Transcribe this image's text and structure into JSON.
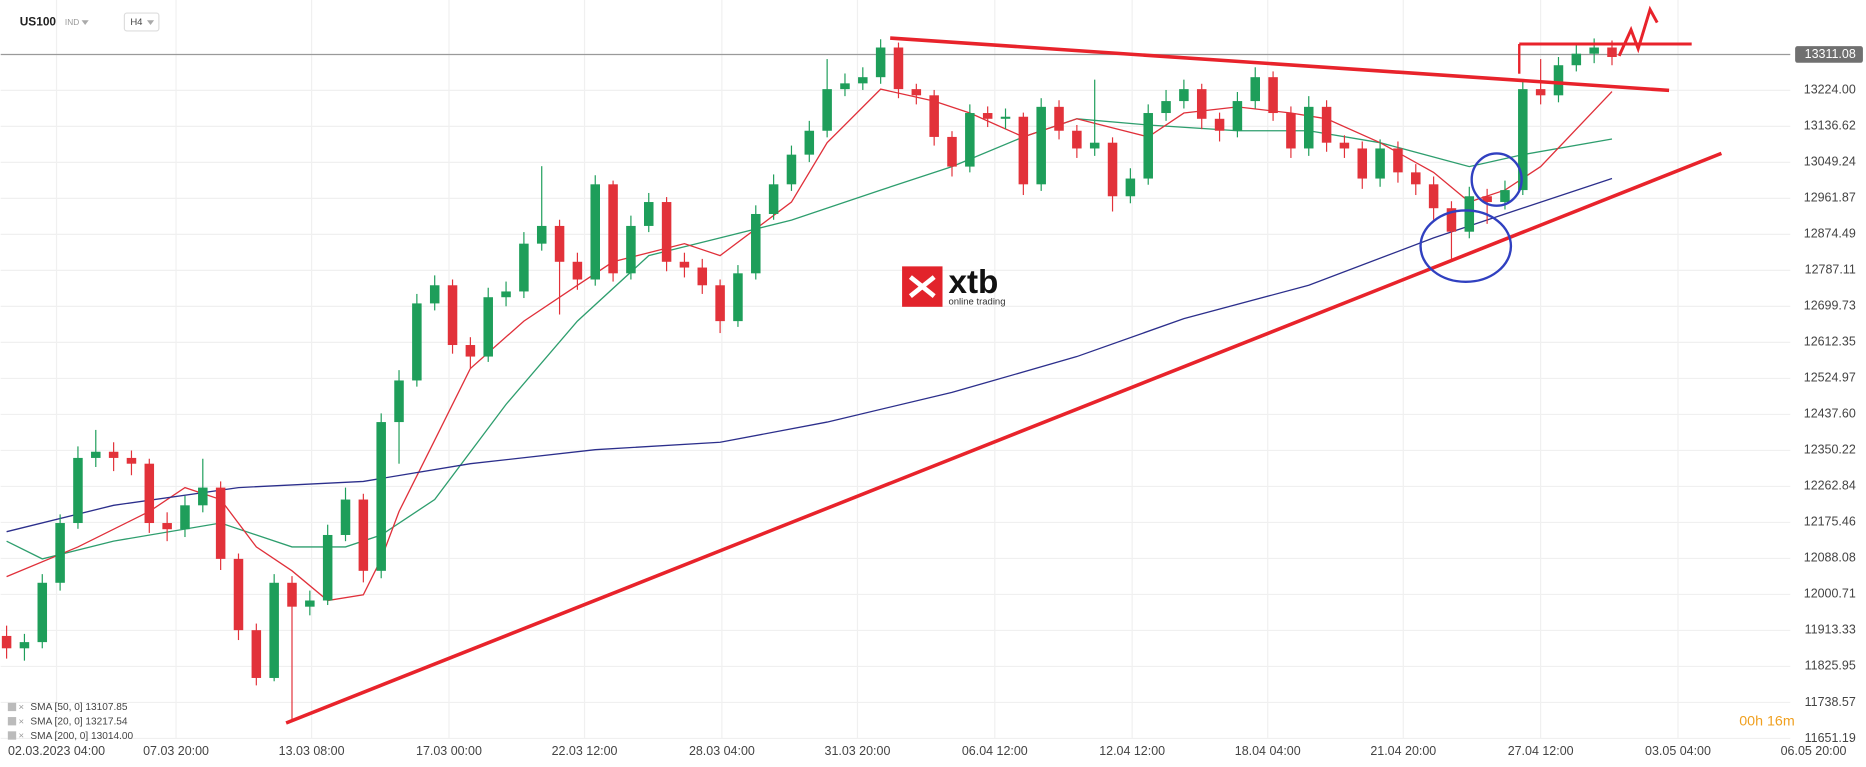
{
  "chart_data": {
    "type": "candlestick",
    "symbol": "US100",
    "market": "IND",
    "interval": "H4",
    "timer": "00h 16m",
    "logo": {
      "brand": "xtb",
      "tagline": "online trading"
    },
    "up_color": "#1e9e5a",
    "down_color": "#e2323a",
    "grid": true,
    "last_price": 13311.08,
    "ylim": [
      11651.19,
      13443.3
    ],
    "yticks": [
      11651.19,
      11738.57,
      11825.95,
      11913.33,
      12000.71,
      12088.08,
      12175.46,
      12262.84,
      12350.22,
      {
        "value": 12437.6,
        "label": "12437.60"
      },
      12524.97,
      12612.35,
      12699.73,
      12787.11,
      12874.49,
      12961.87,
      13049.24,
      13136.62,
      {
        "value": 13224,
        "label": "13224.00"
      }
    ],
    "xlim": [
      -0.33,
      100
    ],
    "xticks": [
      {
        "value": 2.8,
        "label": "02.03.2023  04:00"
      },
      {
        "value": 9.5,
        "label": "07.03  20:00"
      },
      {
        "value": 17.1,
        "label": "13.03  08:00"
      },
      {
        "value": 24.8,
        "label": "17.03  00:00"
      },
      {
        "value": 32.4,
        "label": "22.03  12:00"
      },
      {
        "value": 40.1,
        "label": "28.03  04:00"
      },
      {
        "value": 47.7,
        "label": "31.03  20:00"
      },
      {
        "value": 55.4,
        "label": "06.04  12:00"
      },
      {
        "value": 63.1,
        "label": "12.04  12:00"
      },
      {
        "value": 70.7,
        "label": "18.04  04:00"
      },
      {
        "value": 78.3,
        "label": "21.04  20:00"
      },
      {
        "value": 86,
        "label": "27.04  12:00"
      },
      {
        "value": 93.7,
        "label": "03.05  04:00"
      },
      {
        "value": 101.3,
        "label": "06.05  20:00"
      }
    ],
    "candles": [
      [
        11900,
        11925,
        11845,
        11870
      ],
      [
        11870,
        11905,
        11840,
        11885
      ],
      [
        11885,
        12050,
        11870,
        12029
      ],
      [
        12029,
        12195,
        12010,
        12174
      ],
      [
        12174,
        12360,
        12160,
        12332
      ],
      [
        12332,
        12400,
        12310,
        12347
      ],
      [
        12347,
        12370,
        12300,
        12332
      ],
      [
        12332,
        12350,
        12290,
        12318
      ],
      [
        12318,
        12330,
        12150,
        12174
      ],
      [
        12174,
        12200,
        12130,
        12159
      ],
      [
        12159,
        12240,
        12140,
        12217
      ],
      [
        12217,
        12330,
        12200,
        12260
      ],
      [
        12260,
        12275,
        12060,
        12087
      ],
      [
        12087,
        12100,
        11890,
        11914
      ],
      [
        11914,
        11930,
        11780,
        11798
      ],
      [
        11798,
        12050,
        11790,
        12029
      ],
      [
        12029,
        12045,
        11697,
        11971
      ],
      [
        11971,
        12010,
        11950,
        11986
      ],
      [
        11986,
        12170,
        11975,
        12145
      ],
      [
        12145,
        12260,
        12130,
        12231
      ],
      [
        12231,
        12245,
        12030,
        12058
      ],
      [
        12058,
        12440,
        12040,
        12419
      ],
      [
        12419,
        12545,
        12318,
        12520
      ],
      [
        12520,
        12730,
        12505,
        12707
      ],
      [
        12707,
        12775,
        12690,
        12751
      ],
      [
        12751,
        12765,
        12585,
        12606
      ],
      [
        12606,
        12625,
        12550,
        12578
      ],
      [
        12578,
        12745,
        12565,
        12722
      ],
      [
        12722,
        12760,
        12700,
        12736
      ],
      [
        12736,
        12880,
        12720,
        12852
      ],
      [
        12852,
        13040,
        12835,
        12895
      ],
      [
        12895,
        12910,
        12680,
        12808
      ],
      [
        12808,
        12830,
        12740,
        12765
      ],
      [
        12765,
        13018,
        12750,
        12996
      ],
      [
        12996,
        13005,
        12760,
        12780
      ],
      [
        12780,
        12920,
        12765,
        12895
      ],
      [
        12895,
        12975,
        12880,
        12953
      ],
      [
        12953,
        12965,
        12785,
        12808
      ],
      [
        12808,
        12830,
        12770,
        12794
      ],
      [
        12794,
        12815,
        12730,
        12751
      ],
      [
        12751,
        12765,
        12635,
        12664
      ],
      [
        12664,
        12800,
        12650,
        12780
      ],
      [
        12780,
        12945,
        12765,
        12924
      ],
      [
        12924,
        13020,
        12910,
        12996
      ],
      [
        12996,
        13090,
        12980,
        13068
      ],
      [
        13068,
        13150,
        13050,
        13126
      ],
      [
        13126,
        13300,
        13110,
        13227
      ],
      [
        13227,
        13265,
        13210,
        13241
      ],
      [
        13241,
        13280,
        13225,
        13256
      ],
      [
        13256,
        13348,
        13240,
        13328
      ],
      [
        13328,
        13340,
        13205,
        13227
      ],
      [
        13227,
        13240,
        13190,
        13212
      ],
      [
        13212,
        13225,
        13090,
        13111
      ],
      [
        13111,
        13125,
        13015,
        13039
      ],
      [
        13039,
        13190,
        13025,
        13169
      ],
      [
        13169,
        13185,
        13135,
        13155
      ],
      [
        13155,
        13180,
        13130,
        13160
      ],
      [
        13160,
        13170,
        12970,
        12996
      ],
      [
        12996,
        13205,
        12980,
        13184
      ],
      [
        13184,
        13200,
        13105,
        13126
      ],
      [
        13126,
        13140,
        13060,
        13083
      ],
      [
        13083,
        13250,
        13065,
        13097
      ],
      [
        13097,
        13110,
        12930,
        12967
      ],
      [
        12967,
        13035,
        12950,
        13010
      ],
      [
        13010,
        13190,
        12995,
        13169
      ],
      [
        13169,
        13225,
        13150,
        13198
      ],
      [
        13198,
        13250,
        13180,
        13227
      ],
      [
        13227,
        13240,
        13130,
        13155
      ],
      [
        13155,
        13170,
        13100,
        13126
      ],
      [
        13126,
        13220,
        13110,
        13198
      ],
      [
        13198,
        13280,
        13180,
        13256
      ],
      [
        13256,
        13270,
        13150,
        13169
      ],
      [
        13169,
        13185,
        13060,
        13083
      ],
      [
        13083,
        13210,
        13065,
        13184
      ],
      [
        13184,
        13200,
        13075,
        13097
      ],
      [
        13097,
        13115,
        13060,
        13083
      ],
      [
        13083,
        13100,
        12985,
        13010
      ],
      [
        13010,
        13105,
        12990,
        13083
      ],
      [
        13083,
        13100,
        13000,
        13025
      ],
      [
        13025,
        13045,
        12970,
        12996
      ],
      [
        12996,
        13015,
        12910,
        12938
      ],
      [
        12938,
        12955,
        12810,
        12881
      ],
      [
        12881,
        12990,
        12865,
        12967
      ],
      [
        12967,
        12985,
        12900,
        12953
      ],
      [
        12953,
        13005,
        12935,
        12982
      ],
      [
        12982,
        13250,
        12970,
        13227
      ],
      [
        13227,
        13300,
        13190,
        13212
      ],
      [
        13212,
        13305,
        13195,
        13285
      ],
      [
        13285,
        13335,
        13270,
        13313
      ],
      [
        13313,
        13350,
        13290,
        13328
      ],
      [
        13328,
        13345,
        13285,
        13305
      ]
    ],
    "series": [
      {
        "name": "SMA [50, 0] 13107.85",
        "color": "#2e9e6e",
        "x": [
          0,
          2,
          6,
          12,
          16,
          19,
          21,
          24,
          28,
          32,
          36,
          40,
          44,
          49,
          53,
          57,
          60,
          64,
          69,
          73,
          77,
          82,
          85,
          90
        ],
        "values": [
          12130,
          12087,
          12130,
          12174,
          12116,
          12116,
          12145,
          12231,
          12462,
          12664,
          12823,
          12866,
          12909,
          12982,
          13039,
          13111,
          13155,
          13140,
          13126,
          13126,
          13097,
          13039,
          13068,
          13106
        ]
      },
      {
        "name": "SMA [20, 0] 13217.54",
        "color": "#e0303a",
        "x": [
          0,
          4,
          8,
          10,
          12,
          14,
          16,
          18,
          20,
          21,
          22,
          24,
          26,
          29,
          32,
          34,
          38,
          40,
          44,
          46,
          49,
          52,
          54,
          57,
          60,
          64,
          66,
          69,
          72,
          74,
          77,
          80,
          82,
          84,
          86,
          90
        ],
        "values": [
          12044,
          12116,
          12202,
          12260,
          12231,
          12116,
          12058,
          11986,
          12000,
          12087,
          12202,
          12375,
          12549,
          12664,
          12751,
          12808,
          12852,
          12823,
          12953,
          13097,
          13227,
          13198,
          13169,
          13111,
          13155,
          13111,
          13169,
          13184,
          13169,
          13155,
          13097,
          13025,
          12953,
          12982,
          13039,
          13221
        ]
      },
      {
        "name": "SMA [200, 0] 13014.00",
        "color": "#2c2f8c",
        "x": [
          0,
          6,
          13,
          20,
          26,
          33,
          40,
          46,
          53,
          60,
          66,
          73,
          80,
          84,
          90
        ],
        "values": [
          12153,
          12217,
          12260,
          12275,
          12318,
          12352,
          12370,
          12419,
          12491,
          12578,
          12670,
          12751,
          12866,
          12924,
          13010
        ]
      }
    ]
  }
}
